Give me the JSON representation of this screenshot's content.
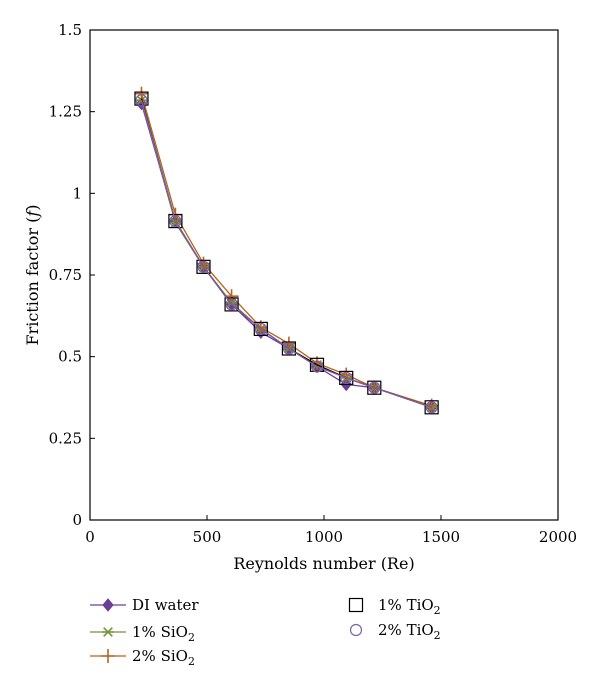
{
  "chart_data": {
    "type": "line",
    "xlabel": "Reynolds number (Re)",
    "ylabel_parts": [
      "Friction factor (",
      "f",
      ")"
    ],
    "xlim": [
      0,
      2000
    ],
    "ylim": [
      0,
      1.5
    ],
    "xticks": [
      0,
      500,
      1000,
      1500,
      2000
    ],
    "xtick_labels": [
      "0",
      "500",
      "1000",
      "1500",
      "2000"
    ],
    "yticks": [
      0,
      0.25,
      0.5,
      0.75,
      1,
      1.25,
      1.5
    ],
    "ytick_labels": [
      "0",
      "0.25",
      "0.5",
      "0.75",
      "1",
      "1.25",
      "1.5"
    ],
    "grid": false,
    "legend_position": "bottom",
    "series": [
      {
        "name": "DI water",
        "label_main": "DI water",
        "label_sub": "",
        "marker": "diamond-filled",
        "color": "#6a3d9a",
        "x": [
          220,
          365,
          485,
          605,
          730,
          850,
          970,
          1095,
          1215,
          1460
        ],
        "y": [
          1.275,
          0.915,
          0.775,
          0.66,
          0.575,
          0.525,
          0.47,
          0.415,
          0.405,
          0.345
        ]
      },
      {
        "name": "1% SiO2",
        "label_main": "1% SiO",
        "label_sub": "2",
        "marker": "asterisk",
        "color": "#76923c",
        "x": [
          220,
          365,
          485,
          605,
          730,
          850,
          970,
          1095,
          1215,
          1460
        ],
        "y": [
          1.285,
          0.91,
          0.775,
          0.665,
          0.585,
          0.525,
          0.475,
          0.435,
          0.405,
          0.345
        ]
      },
      {
        "name": "2% SiO2",
        "label_main": "2% SiO",
        "label_sub": "2",
        "marker": "plus",
        "color": "#b5651d",
        "x": [
          220,
          365,
          485,
          605,
          730,
          850,
          970,
          1095,
          1215,
          1460
        ],
        "y": [
          1.305,
          0.935,
          0.785,
          0.685,
          0.59,
          0.54,
          0.48,
          0.445,
          0.405,
          0.35
        ]
      },
      {
        "name": "1% TiO2",
        "label_main": "1% TiO",
        "label_sub": "2",
        "marker": "square-open",
        "color": "#000000",
        "x": [
          220,
          365,
          485,
          605,
          730,
          850,
          970,
          1095,
          1215,
          1460
        ],
        "y": [
          1.29,
          0.915,
          0.775,
          0.66,
          0.585,
          0.525,
          0.475,
          0.435,
          0.405,
          0.345
        ]
      },
      {
        "name": "2% TiO2",
        "label_main": "2% TiO",
        "label_sub": "2",
        "marker": "circle-open",
        "color": "#7e60a8",
        "x": [
          220,
          365,
          485,
          605,
          730,
          850,
          970,
          1095,
          1215,
          1460
        ],
        "y": [
          1.285,
          0.915,
          0.775,
          0.66,
          0.585,
          0.525,
          0.47,
          0.435,
          0.405,
          0.345
        ]
      }
    ]
  }
}
